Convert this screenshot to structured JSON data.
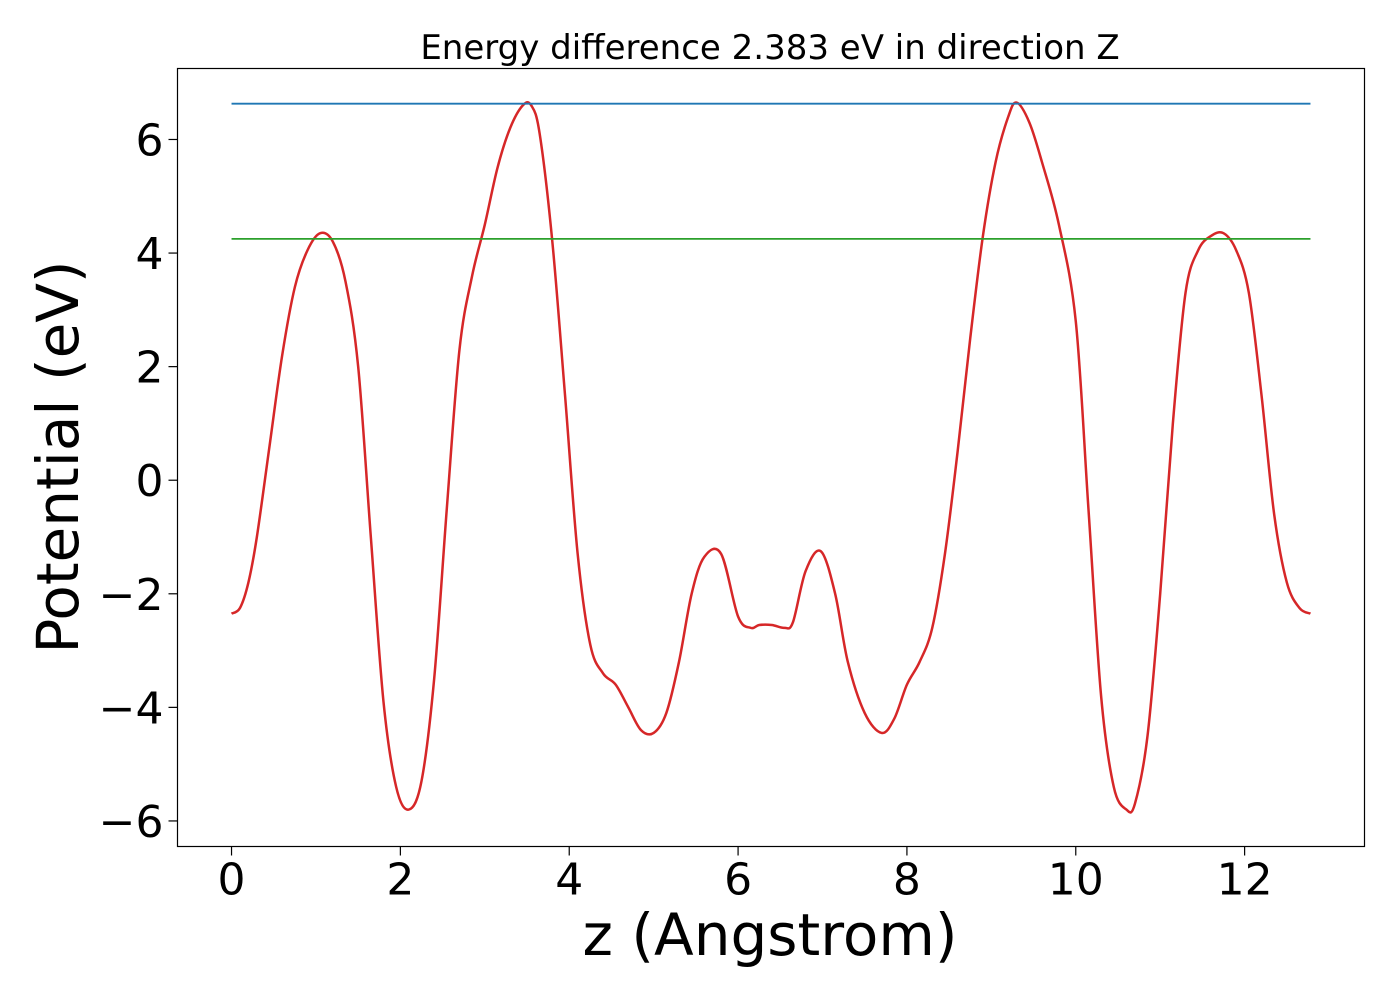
{
  "chart_data": {
    "type": "line",
    "title": "Energy difference 2.383 eV in direction Z",
    "xlabel": "z (Angstrom)",
    "ylabel": "Potential (eV)",
    "xlim": [
      -0.64,
      13.42
    ],
    "ylim": [
      -6.45,
      7.25
    ],
    "xticks": [
      0,
      2,
      4,
      6,
      8,
      10,
      12
    ],
    "yticks": [
      -6,
      -4,
      -2,
      0,
      2,
      4,
      6
    ],
    "xtick_labels": [
      "0",
      "2",
      "4",
      "6",
      "8",
      "10",
      "12"
    ],
    "ytick_labels": [
      "−6",
      "−4",
      "−2",
      "0",
      "2",
      "4",
      "6"
    ],
    "grid": false,
    "series": [
      {
        "color": "#d62728",
        "x": [
          0,
          0.1,
          0.2,
          0.3,
          0.45,
          0.6,
          0.75,
          0.9,
          1.05,
          1.2,
          1.35,
          1.5,
          1.65,
          1.8,
          1.95,
          2.1,
          2.25,
          2.4,
          2.55,
          2.7,
          2.85,
          3.0,
          3.15,
          3.3,
          3.45,
          3.55,
          3.65,
          3.8,
          3.95,
          4.1,
          4.25,
          4.4,
          4.55,
          4.7,
          4.85,
          5.0,
          5.15,
          5.3,
          5.45,
          5.6,
          5.8,
          6.0,
          6.15,
          6.25,
          6.4,
          6.55,
          6.65,
          6.8,
          6.98,
          7.15,
          7.3,
          7.5,
          7.7,
          7.85,
          8.0,
          8.15,
          8.3,
          8.45,
          8.6,
          8.75,
          8.9,
          9.05,
          9.2,
          9.3,
          9.45,
          9.6,
          9.8,
          10.0,
          10.15,
          10.3,
          10.45,
          10.6,
          10.7,
          10.85,
          11.0,
          11.15,
          11.3,
          11.45,
          11.6,
          11.75,
          11.9,
          12.05,
          12.2,
          12.35,
          12.5,
          12.65,
          12.78
        ],
        "values": [
          -2.35,
          -2.25,
          -1.8,
          -1.0,
          0.6,
          2.2,
          3.4,
          4.05,
          4.35,
          4.2,
          3.5,
          2.0,
          -1.0,
          -3.9,
          -5.4,
          -5.8,
          -5.3,
          -3.5,
          -0.5,
          2.3,
          3.6,
          4.5,
          5.5,
          6.2,
          6.6,
          6.6,
          6.1,
          4.2,
          1.5,
          -1.3,
          -2.9,
          -3.4,
          -3.6,
          -4.0,
          -4.4,
          -4.45,
          -4.1,
          -3.2,
          -2.0,
          -1.35,
          -1.3,
          -2.4,
          -2.6,
          -2.55,
          -2.55,
          -2.6,
          -2.5,
          -1.6,
          -1.25,
          -2.0,
          -3.2,
          -4.1,
          -4.45,
          -4.2,
          -3.6,
          -3.2,
          -2.6,
          -1.3,
          0.5,
          2.5,
          4.3,
          5.6,
          6.4,
          6.65,
          6.3,
          5.6,
          4.5,
          2.8,
          -0.5,
          -3.8,
          -5.4,
          -5.8,
          -5.7,
          -4.5,
          -2.0,
          1.0,
          3.3,
          4.05,
          4.3,
          4.35,
          4.05,
          3.3,
          1.5,
          -0.6,
          -1.8,
          -2.25,
          -2.35
        ]
      },
      {
        "color": "#1f77b4",
        "x": [
          0,
          12.78
        ],
        "values": [
          6.63,
          6.63
        ]
      },
      {
        "color": "#2ca02c",
        "x": [
          0,
          12.78
        ],
        "values": [
          4.25,
          4.25
        ]
      }
    ]
  }
}
